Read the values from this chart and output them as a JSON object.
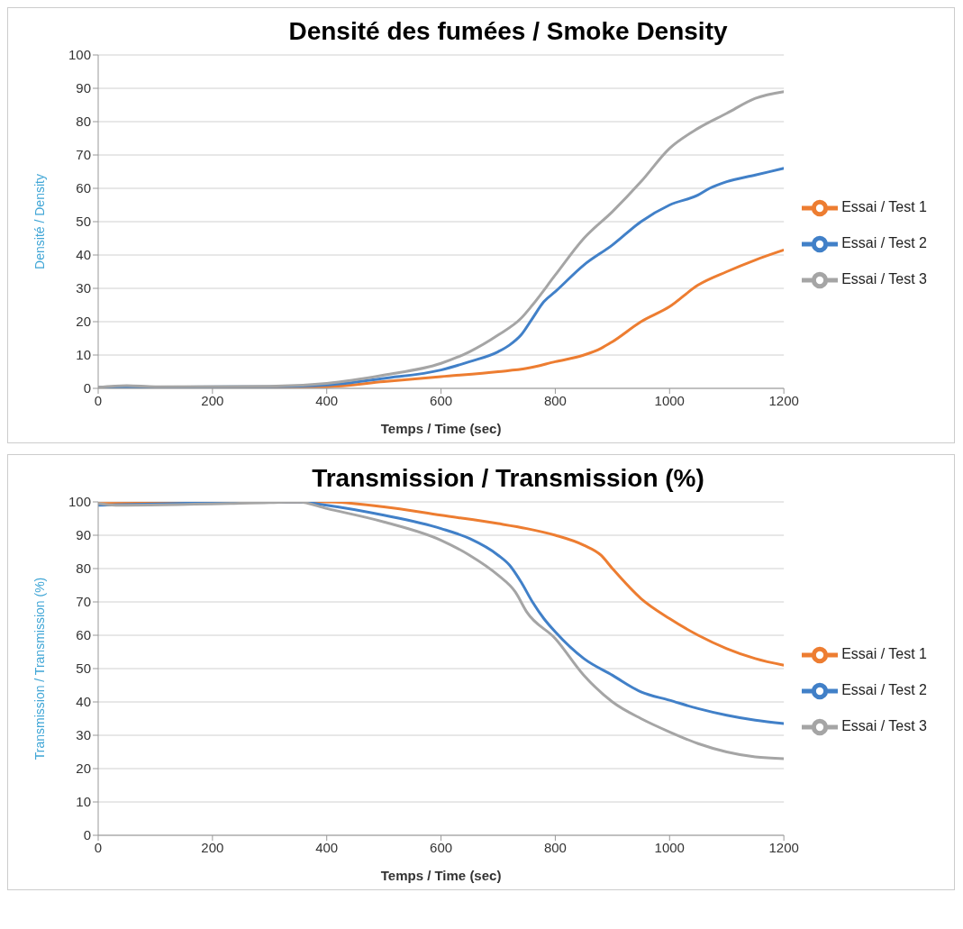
{
  "chart_data": [
    {
      "type": "line",
      "title": "Densité des fumées / Smoke Density",
      "xlabel": "Temps / Time (sec)",
      "ylabel": "Densité / Density",
      "xlim": [
        0,
        1200
      ],
      "xticks": [
        0,
        200,
        400,
        600,
        800,
        1000,
        1200
      ],
      "ylim": [
        0,
        100
      ],
      "yticks": [
        0,
        10,
        20,
        30,
        40,
        50,
        60,
        70,
        80,
        90,
        100
      ],
      "grid": "y",
      "legend": "right",
      "marker": "none",
      "line_style": "solid",
      "series": [
        {
          "name": "Essai / Test 1",
          "color": "#ed7d31",
          "x": [
            0,
            400,
            500,
            600,
            700,
            750,
            800,
            850,
            880,
            900,
            950,
            1000,
            1050,
            1100,
            1150,
            1200
          ],
          "values": [
            0.3,
            0.5,
            2,
            3.5,
            5,
            6,
            8,
            10,
            12,
            14,
            20,
            24.5,
            31,
            35,
            38.5,
            41.5
          ]
        },
        {
          "name": "Essai / Test 2",
          "color": "#4180c8",
          "x": [
            0,
            300,
            400,
            500,
            600,
            650,
            700,
            720,
            740,
            760,
            780,
            800,
            850,
            900,
            950,
            1000,
            1050,
            1070,
            1100,
            1150,
            1200
          ],
          "values": [
            0.3,
            0.5,
            1,
            3,
            5.5,
            8,
            11,
            13,
            16,
            21,
            26,
            29,
            37,
            43,
            50,
            55,
            58,
            60,
            62,
            64,
            66
          ]
        },
        {
          "name": "Essai / Test 3",
          "color": "#a5a5a5",
          "x": [
            0,
            50,
            100,
            300,
            400,
            500,
            600,
            650,
            700,
            740,
            760,
            800,
            850,
            900,
            950,
            1000,
            1050,
            1100,
            1150,
            1200
          ],
          "values": [
            0.3,
            0.8,
            0.5,
            0.6,
            1.5,
            4,
            7.5,
            11,
            16,
            21,
            25,
            34,
            45,
            53,
            62,
            72,
            78,
            82.5,
            87,
            89
          ]
        }
      ]
    },
    {
      "type": "line",
      "title": "Transmission / Transmission (%)",
      "xlabel": "Temps / Time (sec)",
      "ylabel": "Transmission / Transmission (%)",
      "xlim": [
        0,
        1200
      ],
      "xticks": [
        0,
        200,
        400,
        600,
        800,
        1000,
        1200
      ],
      "ylim": [
        0,
        100
      ],
      "yticks": [
        0,
        10,
        20,
        30,
        40,
        50,
        60,
        70,
        80,
        90,
        100
      ],
      "grid": "y",
      "legend": "right",
      "marker": "none",
      "line_style": "solid",
      "series": [
        {
          "name": "Essai / Test 1",
          "color": "#ed7d31",
          "x": [
            0,
            400,
            500,
            600,
            700,
            750,
            800,
            850,
            880,
            900,
            950,
            1000,
            1050,
            1100,
            1150,
            1200
          ],
          "values": [
            99.5,
            100,
            98.5,
            96,
            93.5,
            92,
            90,
            87,
            84,
            80,
            71,
            65,
            60,
            56,
            53,
            51
          ]
        },
        {
          "name": "Essai / Test 2",
          "color": "#4180c8",
          "x": [
            0,
            350,
            400,
            500,
            600,
            650,
            700,
            720,
            740,
            760,
            780,
            800,
            850,
            900,
            950,
            1000,
            1050,
            1100,
            1150,
            1200
          ],
          "values": [
            99,
            100,
            99,
            96,
            92,
            89,
            84,
            81,
            76,
            70,
            65,
            61,
            53,
            48,
            43,
            40.5,
            38,
            36,
            34.5,
            33.5
          ]
        },
        {
          "name": "Essai / Test 3",
          "color": "#a5a5a5",
          "x": [
            0,
            30,
            300,
            350,
            400,
            500,
            600,
            650,
            700,
            730,
            750,
            800,
            850,
            900,
            950,
            1000,
            1050,
            1100,
            1150,
            1200
          ],
          "values": [
            99.5,
            99,
            99.8,
            100,
            98,
            94,
            88.5,
            84,
            78,
            73,
            67,
            59,
            48,
            40,
            35,
            31,
            27.5,
            25,
            23.5,
            23
          ]
        }
      ]
    }
  ]
}
